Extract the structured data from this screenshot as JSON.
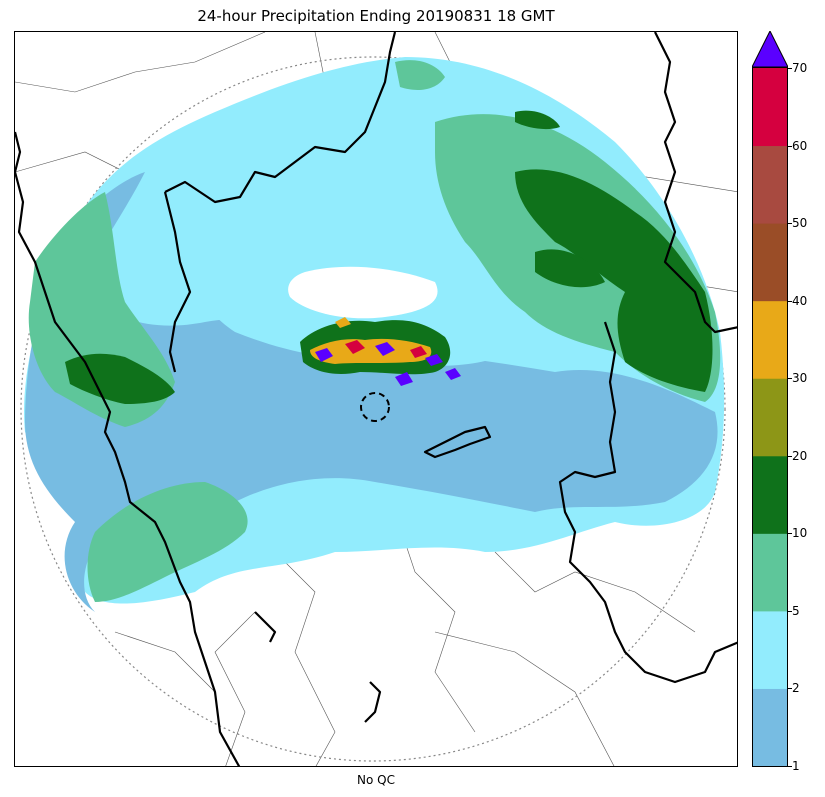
{
  "header": {
    "title": "24-hour Precipitation Ending 20190831 18 GMT"
  },
  "map": {
    "xlabel": "No QC"
  },
  "colorbar": {
    "bins": [
      {
        "low": 1,
        "high": 2,
        "color": "#77bce2"
      },
      {
        "low": 2,
        "high": 5,
        "color": "#92ecfd"
      },
      {
        "low": 5,
        "high": 10,
        "color": "#5ec69a"
      },
      {
        "low": 10,
        "high": 20,
        "color": "#0f721b"
      },
      {
        "low": 20,
        "high": 30,
        "color": "#8d9617"
      },
      {
        "low": 30,
        "high": 40,
        "color": "#e8a918"
      },
      {
        "low": 40,
        "high": 50,
        "color": "#9a4d27"
      },
      {
        "low": 50,
        "high": 60,
        "color": "#a84a40"
      },
      {
        "low": 60,
        "high": 70,
        "color": "#d5003f"
      }
    ],
    "over_color": "#5a00ff",
    "ticks": [
      "1",
      "2",
      "5",
      "10",
      "20",
      "30",
      "40",
      "50",
      "60",
      "70"
    ]
  }
}
